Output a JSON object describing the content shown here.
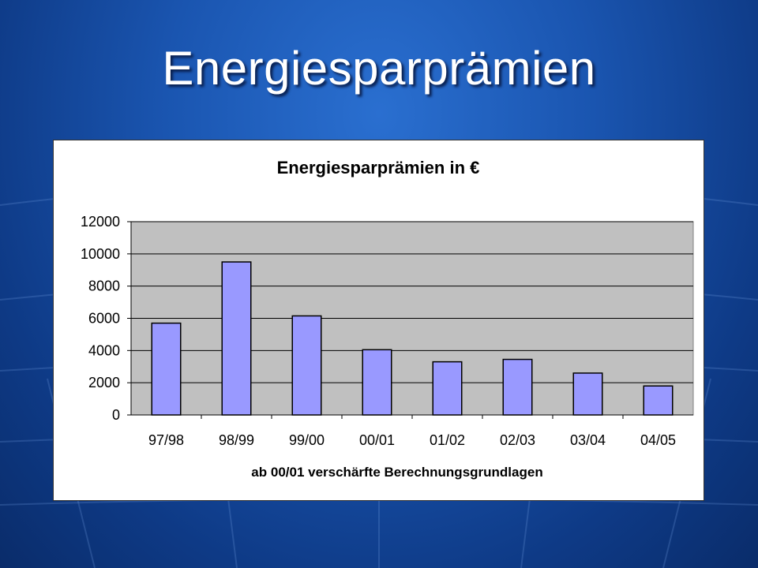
{
  "slide": {
    "title": "Energiesparprämien"
  },
  "chart_data": {
    "type": "bar",
    "title": "Energiesparprämien in €",
    "xlabel": "ab 00/01 verschärfte Berechnungsgrundlagen",
    "ylabel": "",
    "categories": [
      "97/98",
      "98/99",
      "99/00",
      "00/01",
      "01/02",
      "02/03",
      "03/04",
      "04/05"
    ],
    "values": [
      5700,
      9500,
      6150,
      4050,
      3300,
      3450,
      2600,
      1800
    ],
    "ylim": [
      0,
      12000
    ],
    "yticks": [
      "0",
      "2000",
      "4000",
      "6000",
      "8000",
      "10000",
      "12000"
    ],
    "grid": true,
    "legend": "none",
    "colors": {
      "bar": "#9999ff",
      "plot_bg": "#c0c0c0",
      "bar_stroke": "#000000"
    }
  }
}
